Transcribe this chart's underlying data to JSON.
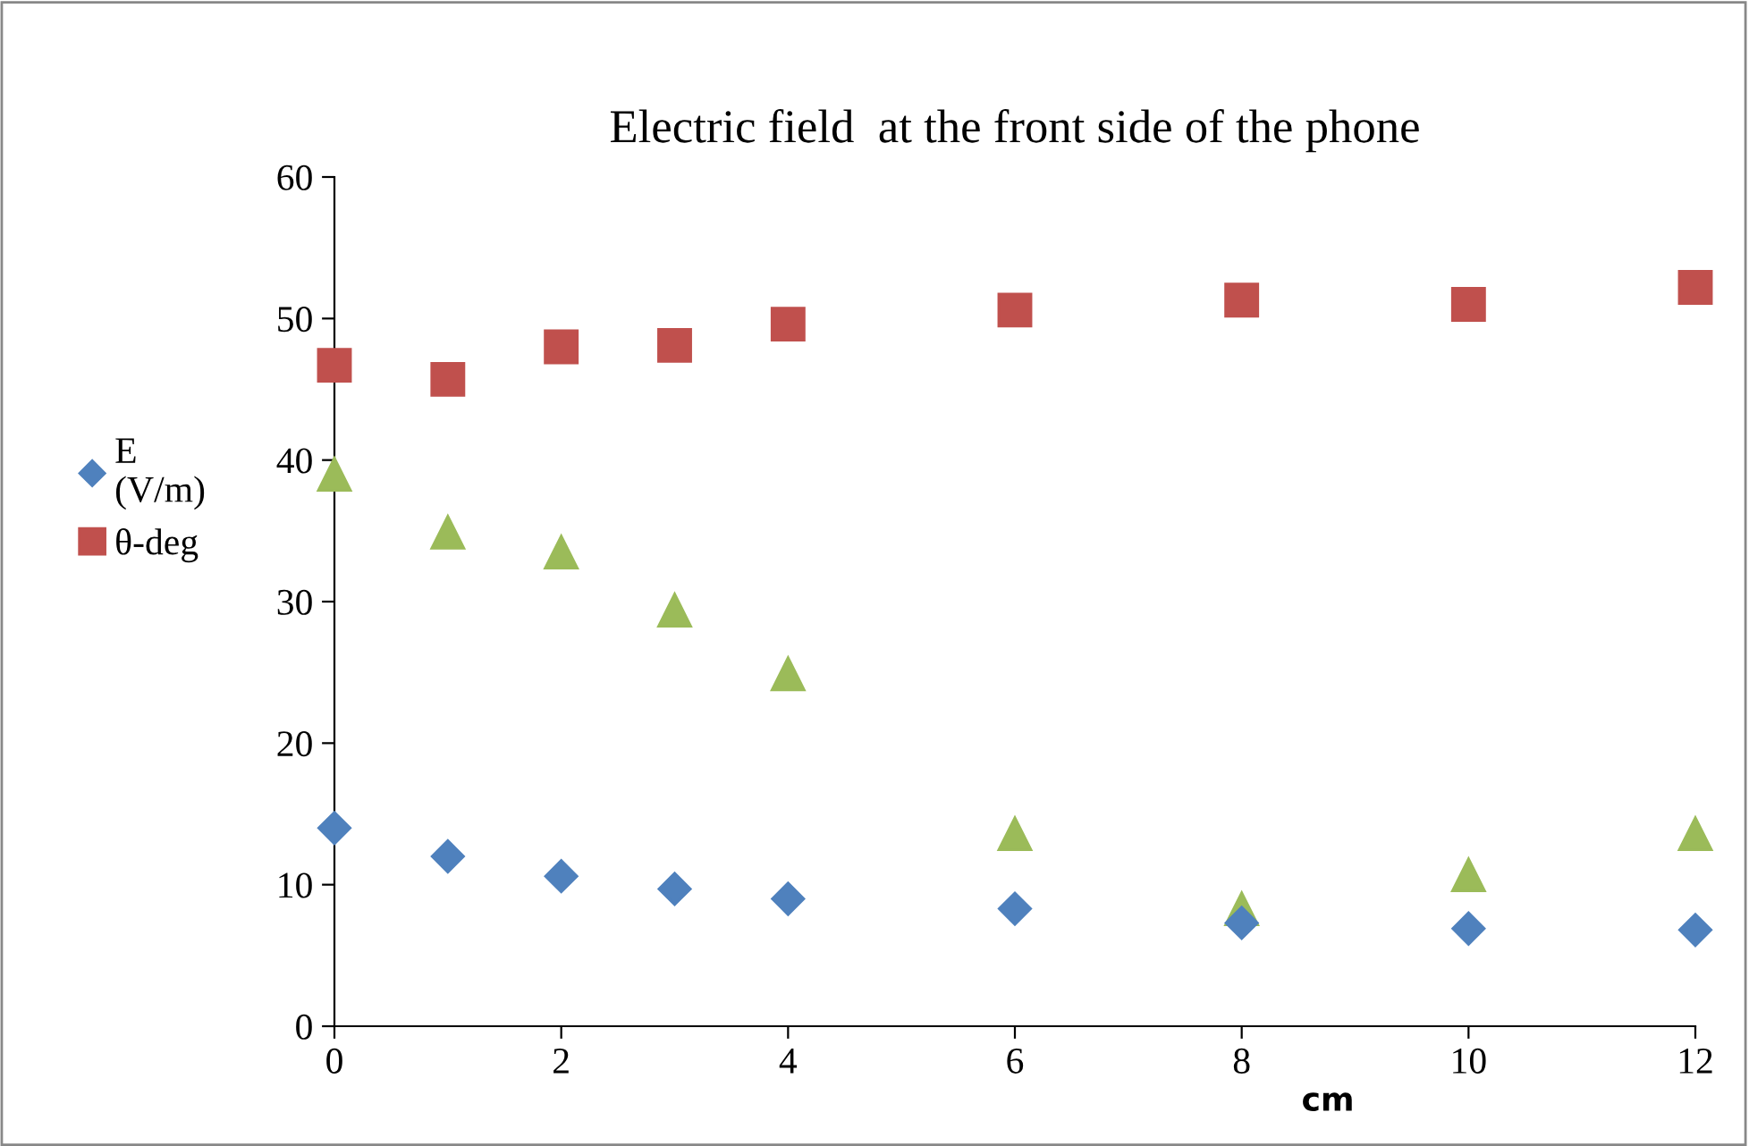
{
  "chart_data": {
    "type": "scatter",
    "title": "Electric field  at the front side of the phone",
    "xlabel": "cm",
    "x": [
      0,
      1,
      2,
      3,
      4,
      6,
      8,
      10,
      12
    ],
    "series": [
      {
        "name": "E\n(V/m)",
        "color": "#4f81bd",
        "marker": "diamond",
        "values": [
          14.0,
          12.0,
          10.6,
          9.7,
          9.0,
          8.3,
          7.3,
          6.9,
          6.8
        ]
      },
      {
        "name": "θ-deg",
        "color": "#c0504d",
        "marker": "square",
        "values": [
          46.7,
          45.7,
          48.0,
          48.1,
          49.6,
          50.6,
          51.3,
          51.0,
          52.2
        ]
      },
      {
        "color": "#9bbb59",
        "marker": "triangle",
        "values": [
          39.0,
          34.9,
          33.5,
          29.4,
          24.9,
          13.6,
          8.3,
          10.7,
          13.6
        ]
      }
    ],
    "xlim": [
      0,
      12
    ],
    "ylim": [
      0,
      60
    ],
    "xticks": [
      0,
      2,
      4,
      6,
      8,
      10,
      12
    ],
    "yticks": [
      0,
      10,
      20,
      30,
      40,
      50,
      60
    ],
    "grid": false,
    "legend": "left"
  }
}
